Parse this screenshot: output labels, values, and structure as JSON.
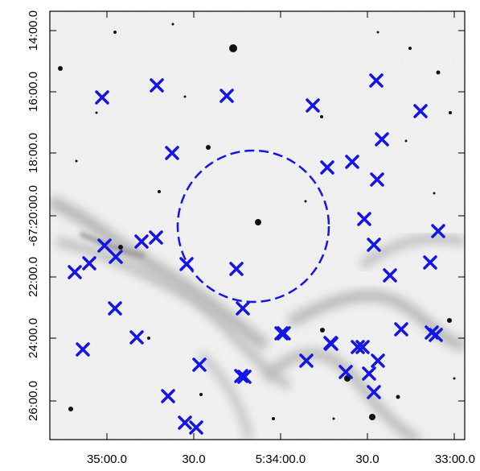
{
  "figure": {
    "x_tick_labels": [
      "35:00.0",
      "30.0",
      "5:34:00.0",
      "30.0",
      "33:00.0"
    ],
    "y_tick_labels": [
      "14:00.0",
      "16:00.0",
      "18:00.0",
      "-67:20:00.0",
      "22:00.0",
      "24:00.0",
      "26:00.0"
    ],
    "y_label_joined": "18:00.0",
    "y_label_joined2": "-67:20:00.0",
    "marker_color": "#1414e6",
    "circle_color": "#1414e6",
    "marker_count": 48
  }
}
